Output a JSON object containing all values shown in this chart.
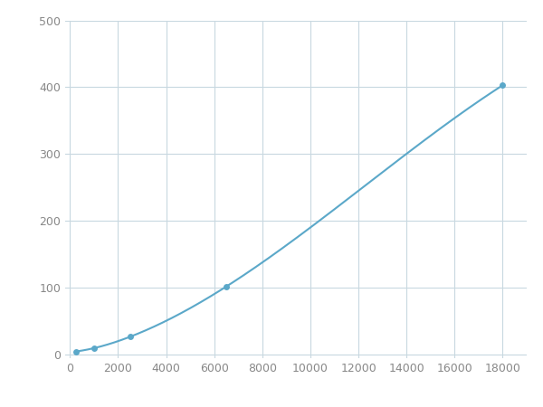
{
  "x_points": [
    250,
    1000,
    2500,
    6500,
    18000
  ],
  "y_points": [
    5,
    10,
    27,
    102,
    403
  ],
  "line_color": "#5ba8c9",
  "marker_color": "#5ba8c9",
  "marker_size": 5,
  "line_width": 1.5,
  "xlim": [
    -200,
    19000
  ],
  "ylim": [
    -5,
    500
  ],
  "xticks": [
    0,
    2000,
    4000,
    6000,
    8000,
    10000,
    12000,
    14000,
    16000,
    18000
  ],
  "yticks": [
    0,
    100,
    200,
    300,
    400,
    500
  ],
  "grid_color": "#c8d8e0",
  "background_color": "#ffffff",
  "fig_background": "#ffffff",
  "figsize": [
    6.0,
    4.5
  ],
  "dpi": 100,
  "tick_fontsize": 9,
  "tick_color": "#888888"
}
